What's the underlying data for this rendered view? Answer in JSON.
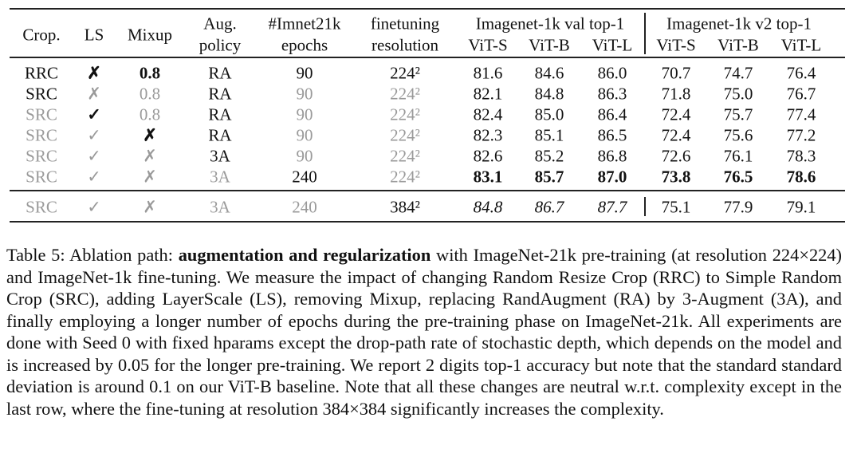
{
  "table": {
    "header": {
      "crop": "Crop.",
      "ls": "LS",
      "mixup": "Mixup",
      "aug": [
        "Aug.",
        "policy"
      ],
      "epochs": [
        "#Imnet21k",
        "epochs"
      ],
      "res": [
        "finetuning",
        "resolution"
      ],
      "val": "Imagenet-1k val top-1",
      "v2": "Imagenet-1k v2 top-1",
      "models": [
        "ViT-S",
        "ViT-B",
        "ViT-L",
        "ViT-S",
        "ViT-B",
        "ViT-L"
      ]
    },
    "rows": [
      [
        "RRC",
        "✗",
        "0.8",
        "RA",
        "90",
        "224²",
        "81.6",
        "84.6",
        "86.0",
        "70.7",
        "74.7",
        "76.4"
      ],
      [
        "SRC",
        "✗",
        "0.8",
        "RA",
        "90",
        "224²",
        "82.1",
        "84.8",
        "86.3",
        "71.8",
        "75.0",
        "76.7"
      ],
      [
        "SRC",
        "✓",
        "0.8",
        "RA",
        "90",
        "224²",
        "82.4",
        "85.0",
        "86.4",
        "72.4",
        "75.7",
        "77.4"
      ],
      [
        "SRC",
        "✓",
        "✗",
        "RA",
        "90",
        "224²",
        "82.3",
        "85.1",
        "86.5",
        "72.4",
        "75.6",
        "77.2"
      ],
      [
        "SRC",
        "✓",
        "✗",
        "3A",
        "90",
        "224²",
        "82.6",
        "85.2",
        "86.8",
        "72.6",
        "76.1",
        "78.3"
      ],
      [
        "SRC",
        "✓",
        "✗",
        "3A",
        "240",
        "224²",
        "83.1",
        "85.7",
        "87.0",
        "73.8",
        "76.5",
        "78.6"
      ],
      [
        "SRC",
        "✓",
        "✗",
        "3A",
        "240",
        "384²",
        "84.8",
        "86.7",
        "87.7",
        "75.1",
        "77.9",
        "79.1"
      ]
    ]
  },
  "caption": {
    "label": "Table 5: Ablation path: ",
    "bold": "augmentation and regularization",
    "text": " with ImageNet-21k pre-training (at resolution 224×224) and ImageNet-1k fine-tuning. We measure the impact of changing Random Resize Crop (RRC) to Simple Random Crop (SRC), adding LayerScale (LS), removing Mixup, replacing RandAugment (RA) by 3-Augment (3A), and finally employing a longer number of epochs during the pre-training phase on ImageNet-21k. All experiments are done with Seed 0 with fixed hparams except the drop-path rate of stochastic depth, which depends on the model and is increased by 0.05 for the longer pre-training. We report 2 digits top-1 accuracy but note that the standard standard deviation is around 0.1 on our ViT-B baseline. Note that all these changes are neutral w.r.t. complexity except in the last row, where the fine-tuning at resolution 384×384 significantly increases the complexity."
  }
}
